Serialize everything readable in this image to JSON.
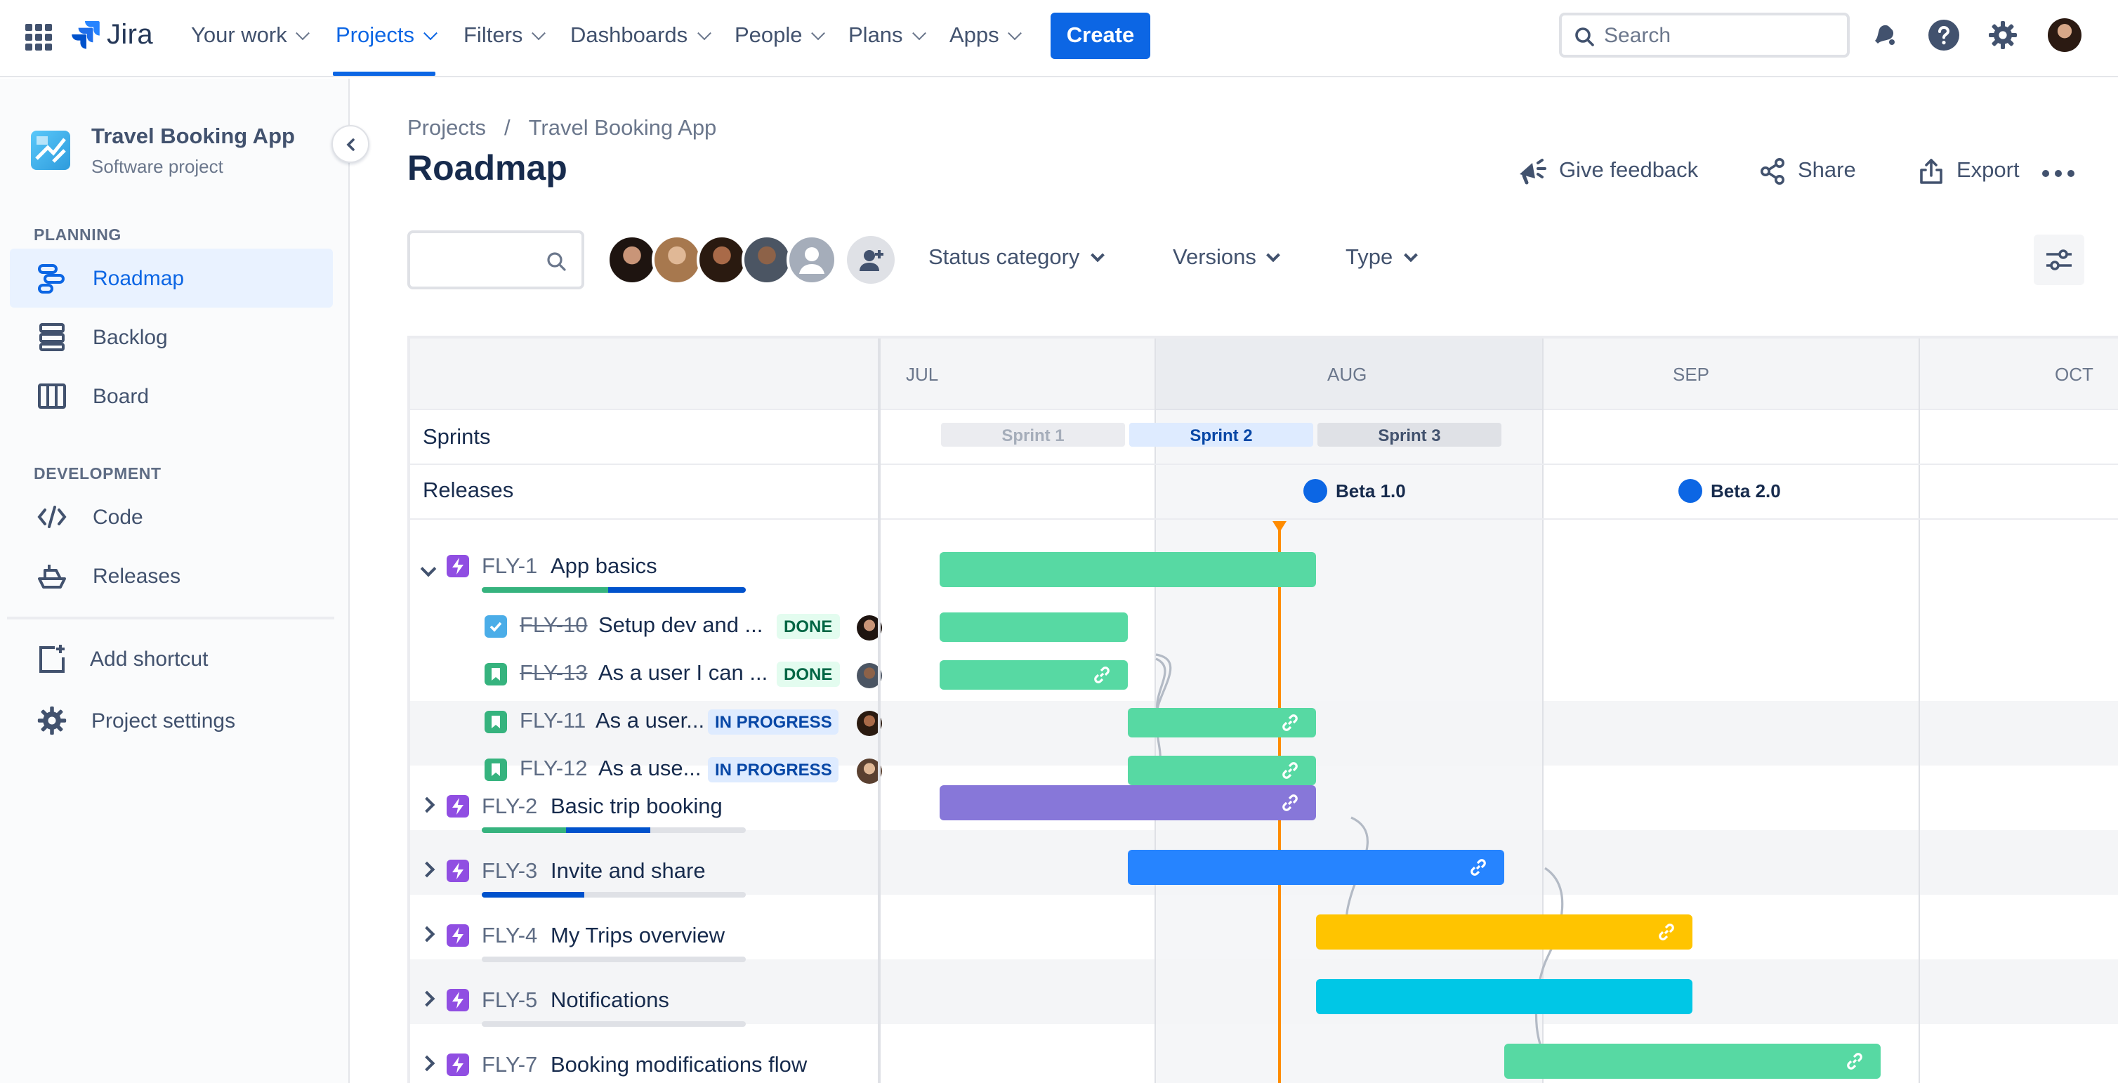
{
  "nav": {
    "logo_text": "Jira",
    "items": [
      {
        "label": "Your work"
      },
      {
        "label": "Projects"
      },
      {
        "label": "Filters"
      },
      {
        "label": "Dashboards"
      },
      {
        "label": "People"
      },
      {
        "label": "Plans"
      },
      {
        "label": "Apps"
      }
    ],
    "create_label": "Create",
    "search_placeholder": "Search",
    "accent": "#0C66E4"
  },
  "sidebar": {
    "project_name": "Travel Booking App",
    "project_type": "Software project",
    "planning_label": "PLANNING",
    "planning_items": [
      {
        "label": "Roadmap",
        "icon": "roadmap-icon",
        "active": true
      },
      {
        "label": "Backlog",
        "icon": "backlog-icon"
      },
      {
        "label": "Board",
        "icon": "board-icon"
      }
    ],
    "development_label": "DEVELOPMENT",
    "development_items": [
      {
        "label": "Code",
        "icon": "code-icon"
      },
      {
        "label": "Releases",
        "icon": "ship-icon"
      }
    ],
    "add_shortcut": "Add shortcut",
    "project_settings": "Project settings"
  },
  "page": {
    "breadcrumb": [
      "Projects",
      "/",
      "Travel Booking App"
    ],
    "title": "Roadmap",
    "actions": {
      "feedback": "Give feedback",
      "share": "Share",
      "export": "Export"
    }
  },
  "filters": {
    "status_category": "Status category",
    "versions": "Versions",
    "type": "Type"
  },
  "timeline": {
    "months": [
      "JUL",
      "AUG",
      "SEP",
      "OCT"
    ],
    "sprints_label": "Sprints",
    "releases_label": "Releases",
    "sprints": [
      "Sprint 1",
      "Sprint 2",
      "Sprint 3"
    ],
    "releases": [
      "Beta 1.0",
      "Beta 2.0"
    ],
    "epics": [
      {
        "key": "FLY-1",
        "title": "App basics",
        "color": "#57D9A3",
        "expanded": true
      },
      {
        "key": "FLY-2",
        "title": "Basic trip booking",
        "color": "#8777D9"
      },
      {
        "key": "FLY-3",
        "title": "Invite and share",
        "color": "#2684FF"
      },
      {
        "key": "FLY-4",
        "title": "My Trips overview",
        "color": "#FFC400"
      },
      {
        "key": "FLY-5",
        "title": "Notifications",
        "color": "#00C7E6"
      },
      {
        "key": "FLY-7",
        "title": "Booking modifications flow",
        "color": "#57D9A3"
      }
    ],
    "children": [
      {
        "key": "FLY-10",
        "title": "Setup dev and ...",
        "status": "DONE",
        "type": "task"
      },
      {
        "key": "FLY-13",
        "title": "As a user I can ...",
        "status": "DONE",
        "type": "story"
      },
      {
        "key": "FLY-11",
        "title": "As a user...",
        "status": "IN PROGRESS",
        "type": "story"
      },
      {
        "key": "FLY-12",
        "title": "As a use...",
        "status": "IN PROGRESS",
        "type": "story"
      }
    ]
  }
}
